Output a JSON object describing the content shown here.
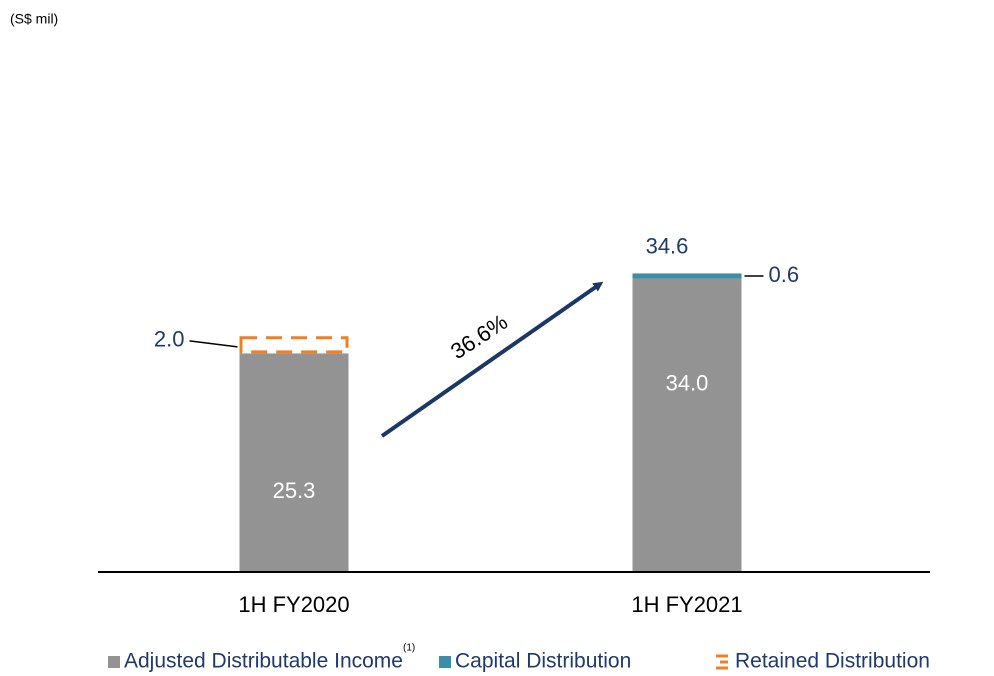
{
  "chart_data": {
    "type": "stacked_bar",
    "unit": "(S$ mil)",
    "categories": [
      "1H FY2020",
      "1H FY2021"
    ],
    "series": [
      {
        "name": "Adjusted Distributable Income",
        "footnote": "(1)",
        "color": "#939393",
        "style": "solid",
        "label_position": "inside",
        "values": [
          25.3,
          34.0
        ],
        "value_labels": [
          "25.3",
          "34.0"
        ]
      },
      {
        "name": "Capital Distribution",
        "color": "#3b8ea5",
        "style": "solid",
        "label_position": "right",
        "values": [
          null,
          0.6
        ],
        "value_labels": [
          null,
          "0.6"
        ]
      },
      {
        "name": "Retained Distribution",
        "color": "#f07f22",
        "style": "dashed",
        "label_position": "left",
        "values": [
          2.0,
          null
        ],
        "value_labels": [
          "2.0",
          null
        ]
      }
    ],
    "annotations": {
      "total": "34.6",
      "growth": "36.6%"
    },
    "ylim": [
      0,
      60
    ]
  }
}
